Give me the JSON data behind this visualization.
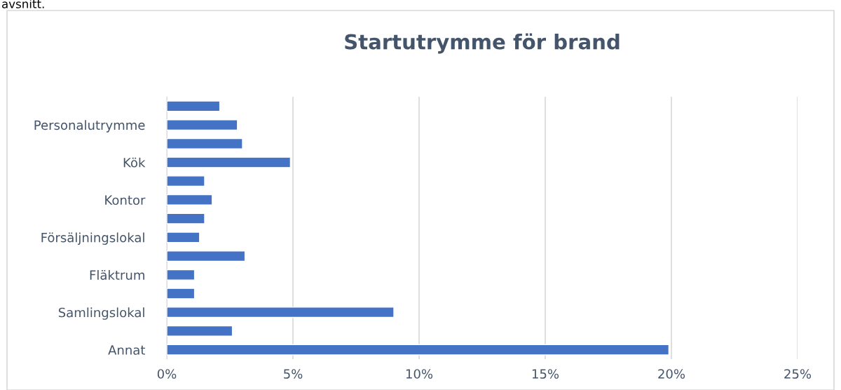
{
  "chart_data": {
    "type": "bar",
    "orientation": "horizontal",
    "title": "Startutrymme för brand",
    "annotations": [
      "avsnitt."
    ],
    "categories": [
      null,
      "Personalutrymme",
      null,
      "Kök",
      null,
      "Kontor",
      null,
      "Försäljningslokal",
      null,
      "Fläktrum",
      null,
      "Samlingslokal",
      null,
      "Annat"
    ],
    "values": [
      2.1,
      2.8,
      3.0,
      4.9,
      1.5,
      1.8,
      1.5,
      1.3,
      3.1,
      1.1,
      1.1,
      9.0,
      2.6,
      19.9
    ],
    "color": "#4472c4",
    "xlim": [
      0,
      25
    ],
    "xticks": [
      {
        "value": 0,
        "label": "0%"
      },
      {
        "value": 5,
        "label": "5%"
      },
      {
        "value": 10,
        "label": "10%"
      },
      {
        "value": 15,
        "label": "15%"
      },
      {
        "value": 20,
        "label": "20%"
      },
      {
        "value": 25,
        "label": "25%"
      }
    ],
    "grid": "x"
  }
}
